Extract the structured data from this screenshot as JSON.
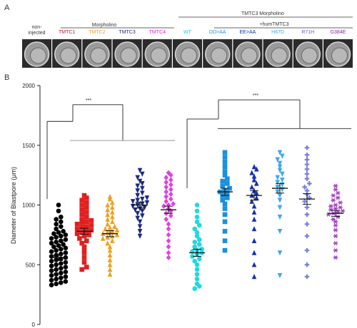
{
  "panel_a": {
    "letter": "A",
    "header_morpholino": "Morpholino",
    "header_tmtc3_morpholino": "TMTC3 Morpholino",
    "header_humtmtc3": "+humTMTC3",
    "panels": [
      {
        "label": "non-injected",
        "color": "#333333"
      },
      {
        "label": "TMTC1",
        "color": "#c0182c"
      },
      {
        "label": "TMTC2",
        "color": "#f0a020"
      },
      {
        "label": "TMTC3",
        "color": "#1a2a80"
      },
      {
        "label": "TMTC4",
        "color": "#e020d0"
      },
      {
        "label": "WT",
        "color": "#20c8d8"
      },
      {
        "label": "DD>AA",
        "color": "#1a90e0"
      },
      {
        "label": "EE>AA",
        "color": "#1430b0"
      },
      {
        "label": "H67D",
        "color": "#40a8e8"
      },
      {
        "label": "R71H",
        "color": "#5a60d0"
      },
      {
        "label": "G384E",
        "color": "#9020a0"
      }
    ]
  },
  "panel_b": {
    "letter": "B"
  },
  "chart_data": {
    "type": "scatter",
    "ylabel": "Diameter of Blastpore (μm)",
    "ylim": [
      0,
      2000
    ],
    "yticks": [
      0,
      500,
      1000,
      1500,
      2000
    ],
    "significance": [
      "***",
      "***"
    ],
    "groups": [
      {
        "label": "non-injected",
        "marker": "circle",
        "color": "#000000",
        "mean": 560,
        "sem": 25,
        "values": [
          330,
          340,
          350,
          360,
          370,
          380,
          390,
          400,
          410,
          420,
          430,
          440,
          450,
          460,
          470,
          480,
          490,
          500,
          510,
          520,
          530,
          540,
          550,
          560,
          570,
          580,
          590,
          600,
          610,
          620,
          630,
          640,
          650,
          660,
          670,
          680,
          690,
          700,
          710,
          720,
          730,
          740,
          750,
          760,
          770,
          780,
          800,
          820,
          840,
          860,
          880,
          900,
          950,
          1000
        ]
      },
      {
        "label": "TMTC1",
        "marker": "square",
        "color": "#e02020",
        "mean": 780,
        "sem": 25,
        "values": [
          460,
          480,
          520,
          560,
          600,
          620,
          650,
          680,
          700,
          720,
          740,
          750,
          760,
          770,
          780,
          790,
          800,
          810,
          820,
          830,
          840,
          850,
          860,
          870,
          880,
          900,
          920,
          940,
          960,
          980,
          1000,
          1020,
          1040,
          1060,
          1080
        ]
      },
      {
        "label": "TMTC2",
        "marker": "triangle-up",
        "color": "#f0a020",
        "mean": 760,
        "sem": 25,
        "values": [
          420,
          460,
          500,
          540,
          580,
          620,
          650,
          680,
          700,
          720,
          730,
          740,
          750,
          760,
          770,
          780,
          790,
          800,
          810,
          820,
          840,
          860,
          880,
          900,
          920,
          940,
          960,
          980,
          1000,
          1020,
          1050,
          1070
        ]
      },
      {
        "label": "TMTC3",
        "marker": "triangle-down",
        "color": "#1a2a80",
        "mean": 1000,
        "sem": 25,
        "values": [
          740,
          780,
          820,
          860,
          890,
          910,
          930,
          950,
          960,
          970,
          980,
          990,
          1000,
          1010,
          1020,
          1030,
          1040,
          1050,
          1060,
          1080,
          1100,
          1120,
          1140,
          1160,
          1180,
          1200,
          1230,
          1260,
          1290
        ]
      },
      {
        "label": "TMTC4",
        "marker": "diamond",
        "color": "#e040e0",
        "mean": 960,
        "sem": 30,
        "values": [
          560,
          600,
          650,
          700,
          750,
          800,
          840,
          880,
          910,
          930,
          950,
          970,
          990,
          1000,
          1010,
          1030,
          1050,
          1070,
          1090,
          1110,
          1130,
          1150,
          1170,
          1190,
          1210,
          1230,
          1250,
          1270
        ]
      },
      {
        "label": "WT",
        "marker": "circle",
        "color": "#20d8e0",
        "mean": 600,
        "sem": 30,
        "values": [
          300,
          320,
          340,
          380,
          420,
          460,
          500,
          530,
          550,
          570,
          590,
          600,
          610,
          620,
          630,
          650,
          670,
          690,
          710,
          740,
          770,
          800,
          830,
          860,
          900,
          950,
          1000
        ]
      },
      {
        "label": "DD>AA",
        "marker": "square",
        "color": "#1a90e0",
        "mean": 1110,
        "sem": 30,
        "values": [
          620,
          700,
          780,
          860,
          920,
          970,
          1010,
          1040,
          1060,
          1080,
          1100,
          1110,
          1120,
          1140,
          1160,
          1180,
          1200,
          1220,
          1250,
          1280,
          1320,
          1360,
          1400,
          1440
        ]
      },
      {
        "label": "EE>AA",
        "marker": "triangle-up",
        "color": "#1430b0",
        "mean": 1080,
        "sem": 40,
        "values": [
          400,
          500,
          600,
          700,
          800,
          880,
          940,
          990,
          1030,
          1060,
          1080,
          1100,
          1120,
          1150,
          1180,
          1210,
          1240,
          1270,
          1300,
          1320
        ]
      },
      {
        "label": "H67D",
        "marker": "triangle-down",
        "color": "#40a8e8",
        "mean": 1140,
        "sem": 40,
        "values": [
          410,
          600,
          780,
          900,
          980,
          1040,
          1080,
          1110,
          1130,
          1150,
          1170,
          1190,
          1210,
          1230,
          1260,
          1290,
          1320,
          1350,
          1380,
          1410,
          1440
        ]
      },
      {
        "label": "R71H",
        "marker": "plus",
        "color": "#7a80e0",
        "mean": 1050,
        "sem": 45,
        "values": [
          400,
          500,
          620,
          740,
          840,
          920,
          980,
          1030,
          1060,
          1090,
          1120,
          1150,
          1180,
          1220,
          1260,
          1300,
          1340,
          1380,
          1420,
          1480
        ]
      },
      {
        "label": "G384E",
        "marker": "asterisk",
        "color": "#a040c0",
        "mean": 930,
        "sem": 25,
        "values": [
          560,
          620,
          680,
          740,
          790,
          830,
          860,
          880,
          900,
          920,
          930,
          940,
          950,
          960,
          970,
          980,
          990,
          1000,
          1020,
          1040,
          1060,
          1080,
          1100,
          1130,
          1160
        ]
      }
    ]
  }
}
